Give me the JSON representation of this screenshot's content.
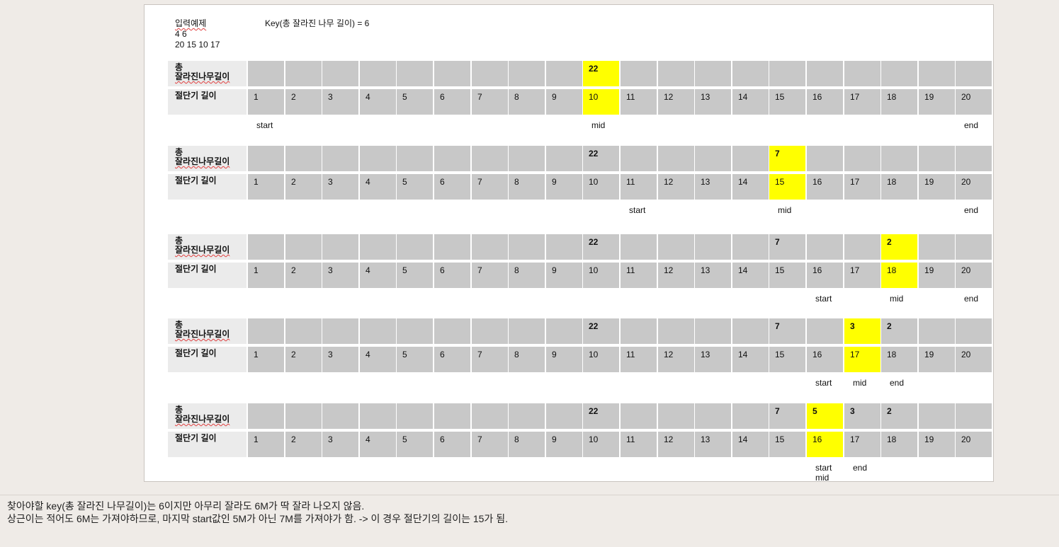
{
  "header": {
    "example_title": "입력예제",
    "example_line1": "4 6",
    "example_line2": "20 15 10 17",
    "key_text": "Key(총 잘라진 나무 길이) = 6"
  },
  "labels": {
    "total_line1": "총",
    "total_line2": "잘라진나무길이",
    "cut": "절단기 길이"
  },
  "cut_lengths": [
    "1",
    "2",
    "3",
    "4",
    "5",
    "6",
    "7",
    "8",
    "9",
    "10",
    "11",
    "12",
    "13",
    "14",
    "15",
    "16",
    "17",
    "18",
    "19",
    "20"
  ],
  "steps": [
    {
      "totals": {
        "10": "22"
      },
      "highlight": 10,
      "markers": [
        {
          "text": "start",
          "at": 1
        },
        {
          "text": "mid",
          "at": 10
        },
        {
          "text": "end",
          "at": 20
        }
      ]
    },
    {
      "totals": {
        "10": "22",
        "15": "7"
      },
      "highlight": 15,
      "markers": [
        {
          "text": "start",
          "at": 11
        },
        {
          "text": "mid",
          "at": 15
        },
        {
          "text": "end",
          "at": 20
        }
      ]
    },
    {
      "totals": {
        "10": "22",
        "15": "7",
        "18": "2"
      },
      "highlight": 18,
      "markers": [
        {
          "text": "start",
          "at": 16
        },
        {
          "text": "mid",
          "at": 18
        },
        {
          "text": "end",
          "at": 20
        }
      ]
    },
    {
      "totals": {
        "10": "22",
        "15": "7",
        "17": "3",
        "18": "2"
      },
      "highlight": 17,
      "markers": [
        {
          "text": "start",
          "at": 16
        },
        {
          "text": "mid",
          "at": 17
        },
        {
          "text": "end",
          "at": 18
        }
      ]
    },
    {
      "totals": {
        "10": "22",
        "15": "7",
        "16": "5",
        "17": "3",
        "18": "2"
      },
      "highlight": 16,
      "markers": [
        {
          "text": "start",
          "at": 16
        },
        {
          "text": "mid",
          "at": 16
        },
        {
          "text": "end",
          "at": 17
        }
      ]
    }
  ],
  "notes": {
    "line1": "찾아야할 key(총 잘라진 나무길이)는 6이지만 아무리 잘라도 6M가 딱 잘라 나오지 않음.",
    "line2": "상근이는 적어도 6M는 가져야하므로, 마지막 start값인 5M가 아닌 7M를 가져야가 함. -> 이 경우 절단기의 길이는 15가 됨."
  }
}
